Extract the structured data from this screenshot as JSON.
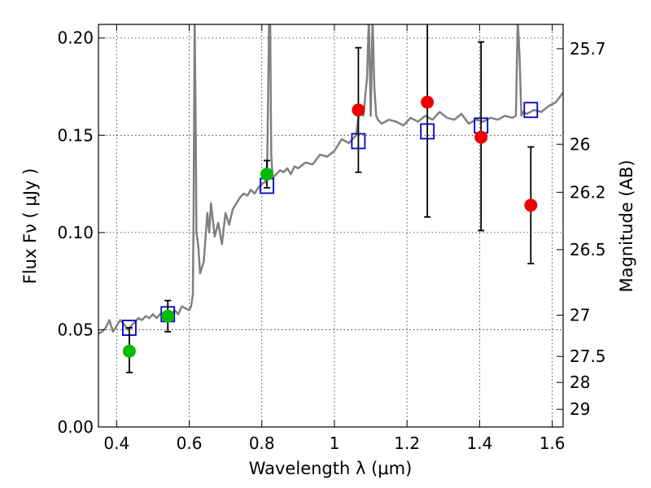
{
  "chart_data": {
    "type": "scatter",
    "xlabel": "Wavelength  λ (μm)",
    "ylabel": "Flux  Fν  ( μJy )",
    "y2label": "Magnitude (AB)",
    "xlim": [
      0.35,
      1.63
    ],
    "ylim": [
      0.0,
      0.207
    ],
    "grid": true,
    "x_ticks": [
      {
        "value": 0.4,
        "label": "0.4"
      },
      {
        "value": 0.6,
        "label": "0.6"
      },
      {
        "value": 0.8,
        "label": "0.8"
      },
      {
        "value": 1.0,
        "label": "1"
      },
      {
        "value": 1.2,
        "label": "1.2"
      },
      {
        "value": 1.4,
        "label": "1.4"
      },
      {
        "value": 1.6,
        "label": "1.6"
      }
    ],
    "y_ticks": [
      {
        "value": 0.0,
        "label": "0.00"
      },
      {
        "value": 0.05,
        "label": "0.05"
      },
      {
        "value": 0.1,
        "label": "0.10"
      },
      {
        "value": 0.15,
        "label": "0.15"
      },
      {
        "value": 0.2,
        "label": "0.20"
      }
    ],
    "y2_ticks": [
      {
        "flux": 0.1945,
        "label": "25.7"
      },
      {
        "flux": 0.1454,
        "label": "26"
      },
      {
        "flux": 0.1207,
        "label": "26.2"
      },
      {
        "flux": 0.0912,
        "label": "26.5"
      },
      {
        "flux": 0.0575,
        "label": "27"
      },
      {
        "flux": 0.0363,
        "label": "27.5"
      },
      {
        "flux": 0.0229,
        "label": "28"
      },
      {
        "flux": 0.0091,
        "label": "29"
      }
    ],
    "series": [
      {
        "kind": "line",
        "color": "#808080",
        "x": [
          0.35,
          0.36,
          0.37,
          0.38,
          0.39,
          0.4,
          0.41,
          0.42,
          0.43,
          0.44,
          0.45,
          0.46,
          0.47,
          0.48,
          0.49,
          0.5,
          0.51,
          0.52,
          0.53,
          0.54,
          0.55,
          0.56,
          0.57,
          0.58,
          0.59,
          0.6,
          0.605,
          0.61,
          0.612,
          0.615,
          0.618,
          0.62,
          0.625,
          0.63,
          0.64,
          0.65,
          0.655,
          0.66,
          0.67,
          0.68,
          0.69,
          0.7,
          0.71,
          0.72,
          0.73,
          0.74,
          0.75,
          0.76,
          0.77,
          0.78,
          0.79,
          0.8,
          0.81,
          0.815,
          0.82,
          0.823,
          0.826,
          0.83,
          0.84,
          0.85,
          0.86,
          0.87,
          0.88,
          0.89,
          0.9,
          0.92,
          0.94,
          0.96,
          0.98,
          1.0,
          1.02,
          1.04,
          1.06,
          1.07,
          1.08,
          1.09,
          1.095,
          1.1,
          1.105,
          1.11,
          1.115,
          1.12,
          1.13,
          1.15,
          1.17,
          1.19,
          1.21,
          1.23,
          1.25,
          1.27,
          1.29,
          1.31,
          1.33,
          1.35,
          1.37,
          1.39,
          1.41,
          1.43,
          1.45,
          1.47,
          1.49,
          1.5,
          1.505,
          1.51,
          1.515,
          1.52,
          1.53,
          1.55,
          1.57,
          1.59,
          1.61,
          1.63
        ],
        "y": [
          0.048,
          0.049,
          0.051,
          0.055,
          0.049,
          0.052,
          0.055,
          0.053,
          0.05,
          0.052,
          0.054,
          0.056,
          0.055,
          0.057,
          0.056,
          0.058,
          0.056,
          0.058,
          0.057,
          0.059,
          0.058,
          0.06,
          0.058,
          0.062,
          0.061,
          0.06,
          0.062,
          0.068,
          0.11,
          0.21,
          0.15,
          0.1,
          0.093,
          0.079,
          0.085,
          0.11,
          0.1,
          0.115,
          0.098,
          0.105,
          0.094,
          0.11,
          0.104,
          0.112,
          0.115,
          0.118,
          0.12,
          0.119,
          0.122,
          0.12,
          0.123,
          0.125,
          0.126,
          0.135,
          0.21,
          0.21,
          0.14,
          0.128,
          0.13,
          0.132,
          0.131,
          0.133,
          0.13,
          0.134,
          0.133,
          0.136,
          0.135,
          0.14,
          0.139,
          0.142,
          0.148,
          0.146,
          0.15,
          0.165,
          0.16,
          0.18,
          0.21,
          0.16,
          0.21,
          0.175,
          0.16,
          0.158,
          0.156,
          0.158,
          0.157,
          0.155,
          0.159,
          0.157,
          0.16,
          0.158,
          0.162,
          0.159,
          0.158,
          0.161,
          0.156,
          0.158,
          0.157,
          0.159,
          0.158,
          0.16,
          0.159,
          0.16,
          0.21,
          0.19,
          0.16,
          0.162,
          0.161,
          0.163,
          0.162,
          0.165,
          0.167,
          0.172
        ]
      },
      {
        "kind": "open-square",
        "color": "#0000cc",
        "x": [
          0.435,
          0.541,
          0.814,
          1.066,
          1.256,
          1.404,
          1.541
        ],
        "y": [
          0.051,
          0.058,
          0.124,
          0.147,
          0.152,
          0.155,
          0.163
        ]
      },
      {
        "kind": "point",
        "color": "#00bb00",
        "x": [
          0.435,
          0.541,
          0.814
        ],
        "y": [
          0.039,
          0.057,
          0.13
        ],
        "yerr_low": [
          0.028,
          0.049,
          0.123
        ],
        "yerr_high": [
          0.051,
          0.065,
          0.137
        ]
      },
      {
        "kind": "point",
        "color": "#ee0000",
        "x": [
          1.066,
          1.256,
          1.404,
          1.541
        ],
        "y": [
          0.163,
          0.167,
          0.149,
          0.114
        ],
        "yerr_low": [
          0.131,
          0.108,
          0.101,
          0.084
        ],
        "yerr_high": [
          0.195,
          0.215,
          0.198,
          0.144
        ]
      }
    ]
  }
}
